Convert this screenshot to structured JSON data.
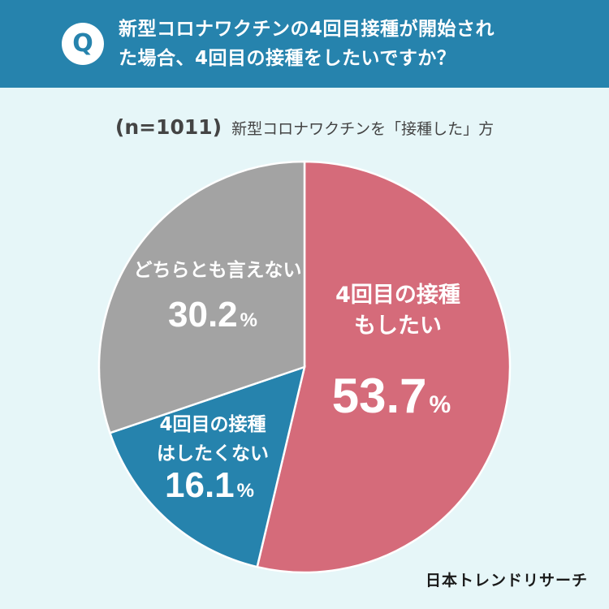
{
  "header": {
    "badge": "Q",
    "question": "新型コロナワクチンの4回目接種が開始され\nた場合、4回目の接種をしたいですか？"
  },
  "subtitle": {
    "sample": "(n=1011)",
    "text": "新型コロナワクチンを「接種した」方"
  },
  "brand": "日本トレンドリサーチ",
  "colors": {
    "header_bg": "#2683ad",
    "background": "#e6f6f8",
    "want": "#d56b7a",
    "not_want": "#2683ad",
    "undecided": "#a3a3a3"
  },
  "chart_data": {
    "type": "pie",
    "title": "4回目の接種をしたいですか？",
    "start": "top, clockwise",
    "slices": [
      {
        "label_lines": [
          "4回目の接種",
          "もしたい"
        ],
        "value": 53.7,
        "display": "53.7",
        "unit": "%",
        "color": "#d56b7a"
      },
      {
        "label_lines": [
          "4回目の接種",
          "はしたくない"
        ],
        "value": 16.1,
        "display": "16.1",
        "unit": "%",
        "color": "#2683ad"
      },
      {
        "label_lines": [
          "どちらとも言えない"
        ],
        "value": 30.2,
        "display": "30.2",
        "unit": "%",
        "color": "#a3a3a3"
      }
    ]
  }
}
